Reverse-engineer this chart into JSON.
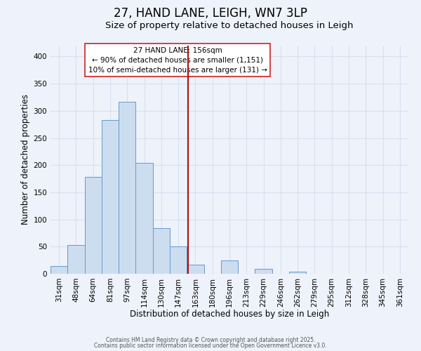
{
  "title": "27, HAND LANE, LEIGH, WN7 3LP",
  "subtitle": "Size of property relative to detached houses in Leigh",
  "xlabel": "Distribution of detached houses by size in Leigh",
  "ylabel": "Number of detached properties",
  "categories": [
    "31sqm",
    "48sqm",
    "64sqm",
    "81sqm",
    "97sqm",
    "114sqm",
    "130sqm",
    "147sqm",
    "163sqm",
    "180sqm",
    "196sqm",
    "213sqm",
    "229sqm",
    "246sqm",
    "262sqm",
    "279sqm",
    "295sqm",
    "312sqm",
    "328sqm",
    "345sqm",
    "361sqm"
  ],
  "bar_values": [
    14,
    53,
    178,
    283,
    317,
    204,
    84,
    51,
    17,
    0,
    25,
    0,
    9,
    0,
    4,
    0,
    0,
    0,
    0,
    0,
    0
  ],
  "bar_color": "#ccddf0",
  "bar_edge_color": "#6699cc",
  "background_color": "#eef2fb",
  "grid_color": "#d8e0f0",
  "vline_color": "#aa1111",
  "annotation_title": "27 HAND LANE: 156sqm",
  "annotation_line1": "← 90% of detached houses are smaller (1,151)",
  "annotation_line2": "10% of semi-detached houses are larger (131) →",
  "footer1": "Contains HM Land Registry data © Crown copyright and database right 2025.",
  "footer2": "Contains public sector information licensed under the Open Government Licence v3.0.",
  "ylim": [
    0,
    420
  ],
  "yticks": [
    0,
    50,
    100,
    150,
    200,
    250,
    300,
    350,
    400
  ],
  "title_fontsize": 12,
  "subtitle_fontsize": 9.5,
  "axis_label_fontsize": 8.5,
  "tick_fontsize": 7.5,
  "annotation_fontsize": 7.5,
  "footer_fontsize": 5.5
}
